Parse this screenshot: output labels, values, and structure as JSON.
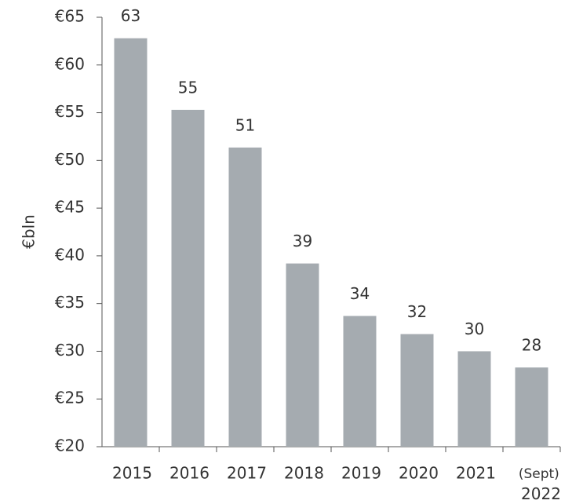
{
  "chart_data": {
    "type": "bar",
    "ylabel": "€bln",
    "categories": [
      "2015",
      "2016",
      "2017",
      "2018",
      "2019",
      "2020",
      "2021",
      "(Sept) 2022"
    ],
    "values": [
      62.8,
      55.3,
      51.35,
      39.2,
      33.7,
      31.8,
      30.0,
      28.3
    ],
    "value_labels": [
      "63",
      "55",
      "51",
      "39",
      "34",
      "32",
      "30",
      "28"
    ],
    "color": "#a5abb0",
    "ylim": [
      20,
      65
    ],
    "yticks": [
      {
        "value": 20,
        "label": "€20"
      },
      {
        "value": 25,
        "label": "€25"
      },
      {
        "value": 30,
        "label": "€30"
      },
      {
        "value": 35,
        "label": "€35"
      },
      {
        "value": 40,
        "label": "€40"
      },
      {
        "value": 45,
        "label": "€45"
      },
      {
        "value": 50,
        "label": "€50"
      },
      {
        "value": 55,
        "label": "€55"
      },
      {
        "value": 60,
        "label": "€60"
      },
      {
        "value": 65,
        "label": "€65"
      }
    ],
    "grid": false
  }
}
